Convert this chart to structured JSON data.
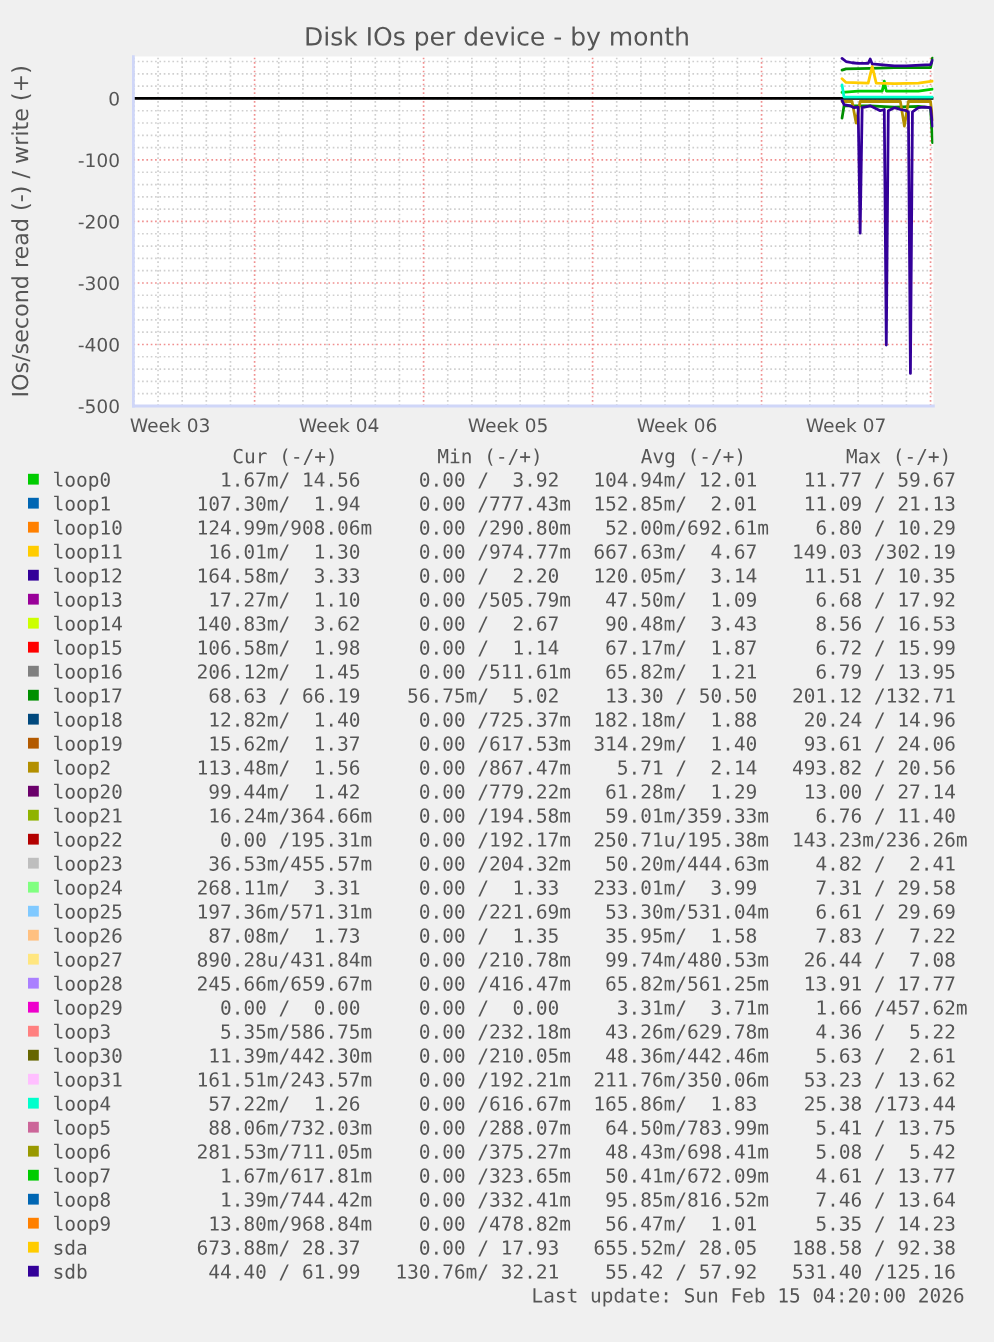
{
  "chart_data": {
    "type": "line",
    "title": "Disk IOs per device - by month",
    "ylabel": "IOs/second read (-) / write (+)",
    "xlim": [
      "2026-01-12T23:30",
      "2026-02-15T02:50"
    ],
    "xticks": [
      {
        "value": "2026-01-14T12:00",
        "label": "Week 03"
      },
      {
        "value": "2026-01-18",
        "label": null
      },
      {
        "value": "2026-01-21T12:00",
        "label": "Week 04"
      },
      {
        "value": "2026-01-25",
        "label": null
      },
      {
        "value": "2026-01-28T12:00",
        "label": "Week 05"
      },
      {
        "value": "2026-02-01",
        "label": null
      },
      {
        "value": "2026-02-04T12:00",
        "label": "Week 06"
      },
      {
        "value": "2026-02-08",
        "label": null
      },
      {
        "value": "2026-02-11T12:00",
        "label": "Week 07"
      },
      {
        "value": "2026-02-15",
        "label": null
      }
    ],
    "ylim": [
      -500,
      68
    ],
    "yticks": [
      -500,
      -400,
      -300,
      -200,
      -100,
      0
    ],
    "grid": true,
    "legend": "bottom",
    "ref_lines": [
      {
        "axis": "y",
        "value": 0,
        "color": "#000000"
      }
    ],
    "series": [
      {
        "name": "loop0",
        "color": "#00cc00",
        "x": [
          "2026-02-11T08:00",
          "2026-02-12T00:00",
          "2026-02-13T00:00",
          "2026-02-13T02:00",
          "2026-02-13T04:00",
          "2026-02-14T12:00",
          "2026-02-15T02:00"
        ],
        "values": [
          10,
          12,
          12,
          28,
          12,
          12,
          15
        ]
      },
      {
        "name": "loop1",
        "color": "#0066b3"
      },
      {
        "name": "loop10",
        "color": "#ff8000"
      },
      {
        "name": "loop11",
        "color": "#ffcc00"
      },
      {
        "name": "loop12",
        "color": "#330099"
      },
      {
        "name": "loop13",
        "color": "#990099"
      },
      {
        "name": "loop14",
        "color": "#ccff00"
      },
      {
        "name": "loop15",
        "color": "#ff0000"
      },
      {
        "name": "loop16",
        "color": "#808080"
      },
      {
        "name": "loop17",
        "color": "#008f00",
        "x": [
          "2026-02-11T08:00",
          "2026-02-11T12:00",
          "2026-02-12T12:00",
          "2026-02-13T12:00",
          "2026-02-14T12:00",
          "2026-02-15T00:00",
          "2026-02-15T02:00"
        ],
        "values": [
          46,
          48,
          49,
          50,
          50,
          50,
          66
        ]
      },
      {
        "color": "#008f00",
        "x": [
          "2026-02-11T08:00",
          "2026-02-11T10:00",
          "2026-02-12T12:00",
          "2026-02-13T12:00",
          "2026-02-14T12:00",
          "2026-02-15T00:00",
          "2026-02-15T02:00"
        ],
        "values": [
          -32,
          -12,
          -12,
          -14,
          -13,
          -15,
          -72
        ]
      },
      {
        "name": "loop18",
        "color": "#00487d"
      },
      {
        "name": "loop19",
        "color": "#b35a00"
      },
      {
        "name": "loop2",
        "color": "#b38f00"
      },
      {
        "color": "#b38f00",
        "x": [
          "2026-02-11T08:00",
          "2026-02-11T18:00",
          "2026-02-11T22:00",
          "2026-02-12T02:00",
          "2026-02-13T18:00",
          "2026-02-13T22:00",
          "2026-02-14T02:00",
          "2026-02-15T00:00",
          "2026-02-15T02:00"
        ],
        "values": [
          -5,
          -5,
          -40,
          -5,
          -5,
          -45,
          -5,
          -5,
          -35
        ]
      },
      {
        "name": "loop20",
        "color": "#6b006b"
      },
      {
        "name": "loop21",
        "color": "#8fb300"
      },
      {
        "name": "loop22",
        "color": "#b30000"
      },
      {
        "name": "loop23",
        "color": "#bebebe"
      },
      {
        "name": "loop24",
        "color": "#80ff80"
      },
      {
        "name": "loop25",
        "color": "#80c9ff"
      },
      {
        "name": "loop26",
        "color": "#ffc080"
      },
      {
        "name": "loop27",
        "color": "#ffe680"
      },
      {
        "name": "loop28",
        "color": "#aa80ff"
      },
      {
        "name": "loop29",
        "color": "#ee00cc"
      },
      {
        "name": "loop3",
        "color": "#ff8080"
      },
      {
        "name": "loop30",
        "color": "#666600"
      },
      {
        "name": "loop31",
        "color": "#ffbfff"
      },
      {
        "name": "loop4",
        "color": "#00ffcc",
        "x": [
          "2026-02-11T08:00",
          "2026-02-11T10:00",
          "2026-02-15T02:00"
        ],
        "values": [
          22,
          2,
          2
        ]
      },
      {
        "name": "loop5",
        "color": "#cc6699"
      },
      {
        "name": "loop6",
        "color": "#999900"
      },
      {
        "name": "loop7",
        "color": "#00cc00"
      },
      {
        "name": "loop8",
        "color": "#0066b3"
      },
      {
        "name": "loop9",
        "color": "#ff8000"
      },
      {
        "name": "sda",
        "color": "#ffcc00",
        "x": [
          "2026-02-11T08:00",
          "2026-02-11T12:00",
          "2026-02-12T10:00",
          "2026-02-12T14:00",
          "2026-02-12T18:00",
          "2026-02-13T12:00",
          "2026-02-14T12:00",
          "2026-02-15T02:00"
        ],
        "values": [
          32,
          26,
          25,
          52,
          25,
          24,
          25,
          28
        ]
      },
      {
        "name": "sdb",
        "color": "#330099",
        "x": [
          "2026-02-11T08:00",
          "2026-02-11T12:00",
          "2026-02-11T18:00",
          "2026-02-12T00:00",
          "2026-02-12T10:00",
          "2026-02-12T12:00",
          "2026-02-12T14:00",
          "2026-02-12T22:00",
          "2026-02-13T12:00",
          "2026-02-14T00:00",
          "2026-02-14T14:00",
          "2026-02-15T00:00",
          "2026-02-15T02:00"
        ],
        "values": [
          65,
          60,
          58,
          57,
          57,
          64,
          56,
          55,
          53,
          53,
          54,
          55,
          62
        ]
      },
      {
        "color": "#330099",
        "x": [
          "2026-02-11T08:00",
          "2026-02-11T10:00",
          "2026-02-11T16:00",
          "2026-02-11T20:00",
          "2026-02-12T00:00",
          "2026-02-12T02:00",
          "2026-02-12T04:00",
          "2026-02-12T12:00",
          "2026-02-12T22:00",
          "2026-02-13T02:00",
          "2026-02-13T04:00",
          "2026-02-13T06:00",
          "2026-02-13T12:00",
          "2026-02-13T18:00",
          "2026-02-14T00:00",
          "2026-02-14T02:00",
          "2026-02-14T04:00",
          "2026-02-14T06:00",
          "2026-02-14T12:00",
          "2026-02-14T18:00",
          "2026-02-15T00:00",
          "2026-02-15T02:00"
        ],
        "values": [
          -3,
          -10,
          -12,
          -15,
          -14,
          -219,
          -15,
          -12,
          -20,
          -18,
          -401,
          -20,
          -15,
          -18,
          -20,
          -22,
          -447,
          -22,
          -15,
          -14,
          -15,
          -45
        ]
      }
    ],
    "annotations": [
      "Cur (-/+)",
      "Min (-/+)",
      "Avg (-/+)",
      "Max (-/+)",
      "1.67m/ 14.56",
      "0.00 /  3.92",
      "104.94m/ 12.01",
      "11.77 / 59.67",
      "107.30m/  1.94",
      "0.00 /777.43m",
      "152.85m/  2.01",
      "11.09 / 21.13",
      "124.99m/908.06m",
      "0.00 /290.80m",
      "52.00m/692.61m",
      "6.80 / 10.29",
      "16.01m/  1.30",
      "0.00 /974.77m",
      "667.63m/  4.67",
      "149.03 /302.19",
      "164.58m/  3.33",
      "0.00 /  2.20",
      "120.05m/  3.14",
      "11.51 / 10.35",
      "17.27m/  1.10",
      "0.00 /505.79m",
      "47.50m/  1.09",
      "6.68 / 17.92",
      "140.83m/  3.62",
      "0.00 /  2.67",
      "90.48m/  3.43",
      "8.56 / 16.53",
      "106.58m/  1.98",
      "0.00 /  1.14",
      "67.17m/  1.87",
      "6.72 / 15.99",
      "206.12m/  1.45",
      "0.00 /511.61m",
      "65.82m/  1.21",
      "6.79 / 13.95",
      "68.63 / 66.19",
      "56.75m/  5.02",
      "13.30 / 50.50",
      "201.12 /132.71",
      "12.82m/  1.40",
      "0.00 /725.37m",
      "182.18m/  1.88",
      "20.24 / 14.96",
      "15.62m/  1.37",
      "0.00 /617.53m",
      "314.29m/  1.40",
      "93.61 / 24.06",
      "113.48m/  1.56",
      "0.00 /867.47m",
      "5.71 /  2.14",
      "493.82 / 20.56",
      "99.44m/  1.42",
      "0.00 /779.22m",
      "61.28m/  1.29",
      "13.00 / 27.14",
      "16.24m/364.66m",
      "0.00 /194.58m",
      "59.01m/359.33m",
      "6.76 / 11.40",
      "0.00 /195.31m",
      "0.00 /192.17m",
      "250.71u/195.38m",
      "143.23m/236.26m",
      "36.53m/455.57m",
      "0.00 /204.32m",
      "50.20m/444.63m",
      "4.82 /  2.41",
      "268.11m/  3.31",
      "0.00 /  1.33",
      "233.01m/  3.99",
      "7.31 / 29.58",
      "197.36m/571.31m",
      "0.00 /221.69m",
      "53.30m/531.04m",
      "6.61 / 29.69",
      "87.08m/  1.73",
      "0.00 /  1.35",
      "35.95m/  1.58",
      "7.83 /  7.22",
      "890.28u/431.84m",
      "0.00 /210.78m",
      "99.74m/480.53m",
      "26.44 /  7.08",
      "245.66m/659.67m",
      "0.00 /416.47m",
      "65.82m/561.25m",
      "13.91 / 17.77",
      "0.00 /  0.00",
      "0.00 /  0.00",
      "3.31m/  3.71m",
      "1.66 /457.62m",
      "5.35m/586.75m",
      "0.00 /232.18m",
      "43.26m/629.78m",
      "4.36 /  5.22",
      "11.39m/442.30m",
      "0.00 /210.05m",
      "48.36m/442.46m",
      "5.63 /  2.61",
      "161.51m/243.57m",
      "0.00 /192.21m",
      "211.76m/350.06m",
      "53.23 / 13.62",
      "57.22m/  1.26",
      "0.00 /616.67m",
      "165.86m/  1.83",
      "25.38 /173.44",
      "88.06m/732.03m",
      "0.00 /288.07m",
      "64.50m/783.99m",
      "5.41 / 13.75",
      "281.53m/711.05m",
      "0.00 /375.27m",
      "48.43m/698.41m",
      "5.08 /  5.42",
      "1.67m/617.81m",
      "0.00 /323.65m",
      "50.41m/672.09m",
      "4.61 / 13.77",
      "1.39m/744.42m",
      "0.00 /332.41m",
      "95.85m/816.52m",
      "7.46 / 13.64",
      "13.80m/968.84m",
      "0.00 /478.82m",
      "56.47m/  1.01",
      "5.35 / 14.23",
      "673.88m/ 28.37",
      "0.00 / 17.93",
      "655.52m/ 28.05",
      "188.58 / 92.38",
      "44.40 / 61.99",
      "130.76m/ 32.21",
      "55.42 / 57.92",
      "531.40 /125.16",
      "Last update: Sun Feb 15 04:20:00 2026"
    ]
  }
}
